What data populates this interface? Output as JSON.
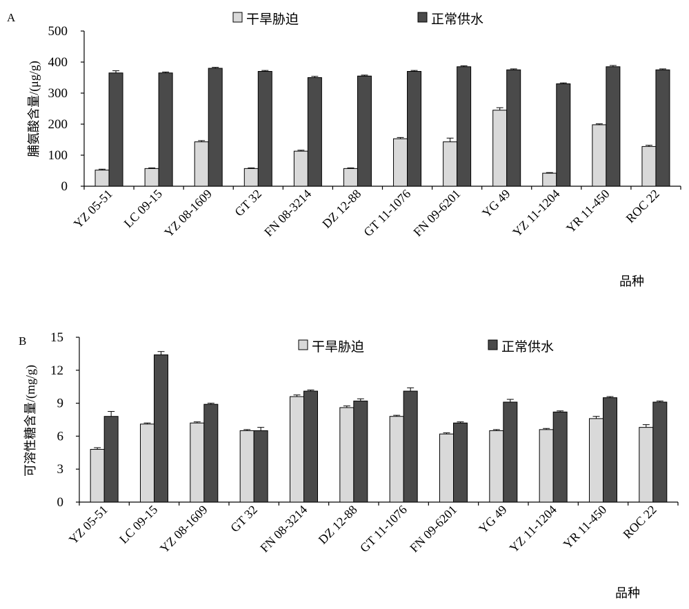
{
  "chart_data": [
    {
      "type": "bar",
      "panel": "A",
      "categories": [
        "YZ 05-51",
        "LC 09-15",
        "YZ 08-1609",
        "GT 32",
        "FN 08-3214",
        "DZ 12-88",
        "GT 11-1076",
        "FN 09-6201",
        "YG 49",
        "YZ 11-1204",
        "YR 11-450",
        "ROC 22"
      ],
      "series": [
        {
          "name": "干旱胁迫",
          "color": "#d9d9d9",
          "values": [
            52,
            57,
            143,
            57,
            113,
            57,
            153,
            143,
            245,
            42,
            198,
            128
          ],
          "errors": [
            3,
            2,
            4,
            2,
            3,
            2,
            4,
            12,
            8,
            2,
            3,
            4
          ]
        },
        {
          "name": "正常供水",
          "color": "#4a4a4a",
          "values": [
            365,
            365,
            380,
            370,
            350,
            355,
            370,
            385,
            375,
            330,
            385,
            375
          ],
          "errors": [
            7,
            3,
            3,
            3,
            4,
            3,
            3,
            3,
            3,
            3,
            4,
            3
          ]
        }
      ],
      "xlabel": "品种",
      "ylabel": "脯氨酸含量/(μg/g)",
      "ylim": [
        0,
        500
      ],
      "yticks": [
        0,
        100,
        200,
        300,
        400,
        500
      ],
      "grid": false,
      "legend_position": "top"
    },
    {
      "type": "bar",
      "panel": "B",
      "categories": [
        "YZ 05-51",
        "LC 09-15",
        "YZ 08-1609",
        "GT 32",
        "FN 08-3214",
        "DZ 12-88",
        "GT 11-1076",
        "FN 09-6201",
        "YG 49",
        "YZ 11-1204",
        "YR 11-450",
        "ROC 22"
      ],
      "series": [
        {
          "name": "干旱胁迫",
          "color": "#d9d9d9",
          "values": [
            4.8,
            7.1,
            7.2,
            6.5,
            9.6,
            8.6,
            7.8,
            6.2,
            6.5,
            6.6,
            7.6,
            6.8
          ],
          "errors": [
            0.15,
            0.1,
            0.1,
            0.1,
            0.15,
            0.15,
            0.1,
            0.1,
            0.1,
            0.1,
            0.2,
            0.25
          ]
        },
        {
          "name": "正常供水",
          "color": "#4a4a4a",
          "values": [
            7.8,
            13.4,
            8.9,
            6.5,
            10.1,
            9.2,
            10.1,
            7.2,
            9.1,
            8.2,
            9.5,
            9.1
          ],
          "errors": [
            0.45,
            0.3,
            0.1,
            0.3,
            0.1,
            0.2,
            0.3,
            0.1,
            0.25,
            0.1,
            0.1,
            0.1
          ]
        }
      ],
      "xlabel": "品种",
      "ylabel": "可溶性糖含量/(mg/g)",
      "ylim": [
        0,
        15
      ],
      "yticks": [
        0,
        3,
        6,
        9,
        12,
        15
      ],
      "grid": false,
      "legend_position": "top-right"
    }
  ]
}
